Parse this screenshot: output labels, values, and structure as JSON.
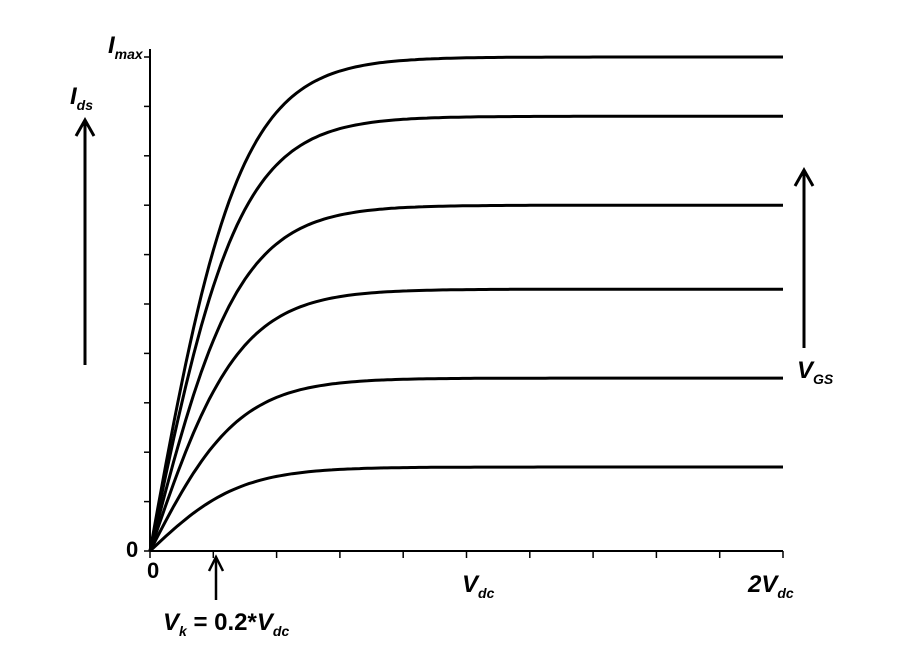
{
  "chart_data": {
    "type": "line",
    "x_unit": "Vdc",
    "xlim": [
      0,
      2
    ],
    "ylim": [
      0,
      1
    ],
    "x_ticks": [
      {
        "value": 0,
        "label": "0"
      },
      {
        "value": 1,
        "main": "V",
        "sub": "dc"
      },
      {
        "value": 2,
        "main": "2V",
        "sub": "dc"
      }
    ],
    "y_ticks": [
      {
        "value": 0,
        "label": "0"
      },
      {
        "value": 1,
        "main": "I",
        "sub": "max"
      }
    ],
    "ylabel": {
      "main": "I",
      "sub": "ds"
    },
    "vgs_label": {
      "main": "V",
      "sub": "GS"
    },
    "knee": {
      "x": 0.2,
      "main": "V",
      "sub": "k",
      "mid": " = 0.2*",
      "main2": "V",
      "sub2": "dc"
    },
    "series": [
      {
        "sat": 0.17,
        "knee_x": 0.75
      },
      {
        "sat": 0.35,
        "knee_x": 0.75
      },
      {
        "sat": 0.53,
        "knee_x": 0.75
      },
      {
        "sat": 0.7,
        "knee_x": 0.75
      },
      {
        "sat": 0.88,
        "knee_x": 0.75
      },
      {
        "sat": 1.0,
        "knee_x": 0.75
      }
    ]
  }
}
